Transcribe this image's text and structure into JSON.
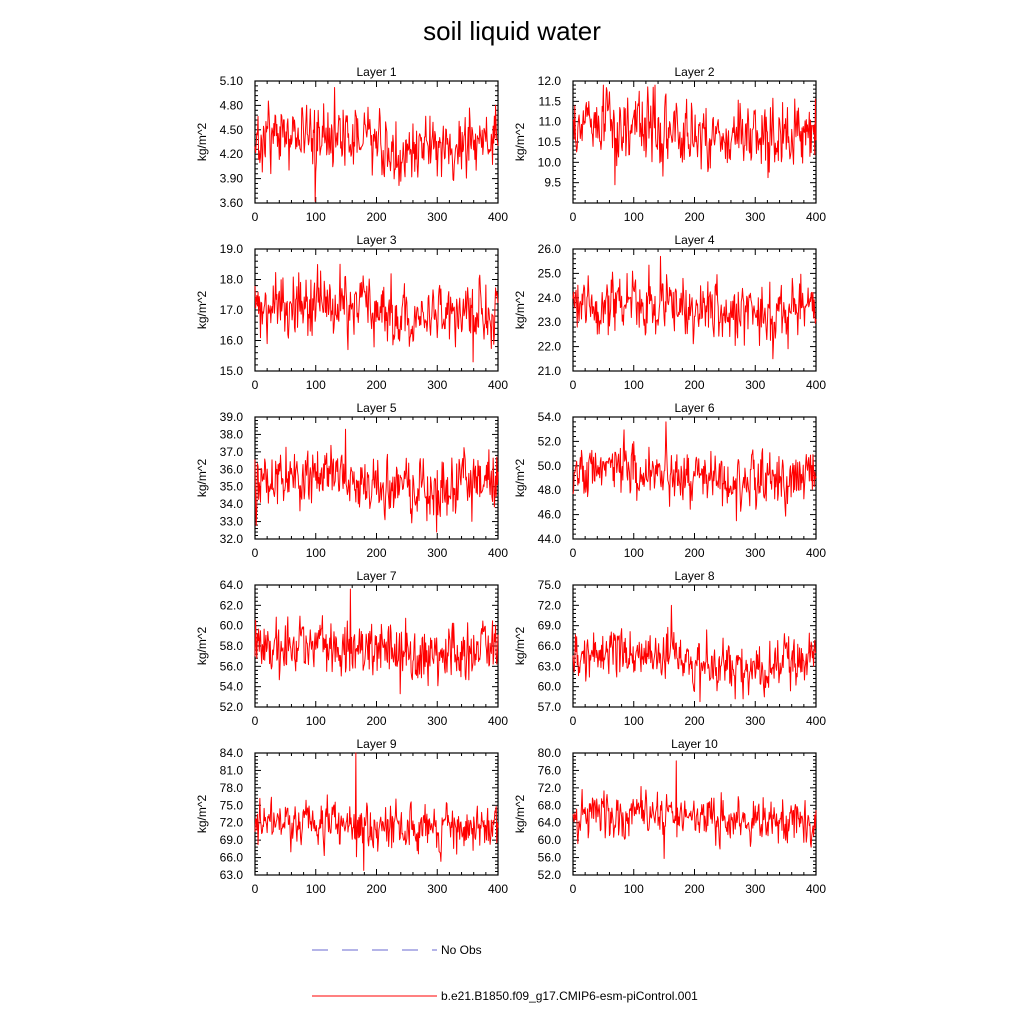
{
  "title": "soil liquid water",
  "colors": {
    "model_line": "#ff0000",
    "obs_line": "#6a6ad0",
    "axis": "#000000"
  },
  "legend": {
    "obs_label": "No Obs",
    "model_label": "b.e21.B1850.f09_g17.CMIP6-esm-piControl.001"
  },
  "chart_data": [
    {
      "type": "line",
      "title": "Layer 1",
      "ylabel": "kg/m^2",
      "xlabel": "",
      "xlim": [
        0,
        400
      ],
      "ylim": [
        3.6,
        5.1
      ],
      "xticks": [
        0,
        100,
        200,
        300,
        400
      ],
      "yticks": [
        3.6,
        3.9,
        4.2,
        4.5,
        4.8,
        5.1
      ],
      "ydecimals": 2,
      "series": [
        {
          "y_mean": 4.35,
          "y_amplitude": 0.24,
          "y_max": 5.02,
          "y_min": 3.62,
          "n_points": 400,
          "seed": 1
        }
      ]
    },
    {
      "type": "line",
      "title": "Layer 2",
      "ylabel": "kg/m^2",
      "xlabel": "",
      "xlim": [
        0,
        400
      ],
      "ylim": [
        9.0,
        12.0
      ],
      "xticks": [
        0,
        100,
        200,
        300,
        400
      ],
      "yticks": [
        9.5,
        10.0,
        10.5,
        11.0,
        11.5,
        12.0
      ],
      "ydecimals": 1,
      "series": [
        {
          "y_mean": 10.75,
          "y_amplitude": 0.5,
          "y_max": 11.9,
          "y_min": 9.45,
          "n_points": 400,
          "seed": 2
        }
      ]
    },
    {
      "type": "line",
      "title": "Layer 3",
      "ylabel": "kg/m^2",
      "xlabel": "",
      "xlim": [
        0,
        400
      ],
      "ylim": [
        15.0,
        19.0
      ],
      "xticks": [
        0,
        100,
        200,
        300,
        400
      ],
      "yticks": [
        15.0,
        16.0,
        17.0,
        18.0,
        19.0
      ],
      "ydecimals": 1,
      "series": [
        {
          "y_mean": 17.0,
          "y_amplitude": 0.6,
          "y_max": 18.5,
          "y_min": 15.3,
          "n_points": 400,
          "seed": 3
        }
      ]
    },
    {
      "type": "line",
      "title": "Layer 4",
      "ylabel": "kg/m^2",
      "xlabel": "",
      "xlim": [
        0,
        400
      ],
      "ylim": [
        21.0,
        26.0
      ],
      "xticks": [
        0,
        100,
        200,
        300,
        400
      ],
      "yticks": [
        21.0,
        22.0,
        23.0,
        24.0,
        25.0,
        26.0
      ],
      "ydecimals": 1,
      "series": [
        {
          "y_mean": 23.6,
          "y_amplitude": 0.75,
          "y_max": 25.7,
          "y_min": 21.5,
          "n_points": 400,
          "seed": 4
        }
      ]
    },
    {
      "type": "line",
      "title": "Layer 5",
      "ylabel": "kg/m^2",
      "xlabel": "",
      "xlim": [
        0,
        400
      ],
      "ylim": [
        32.0,
        39.0
      ],
      "xticks": [
        0,
        100,
        200,
        300,
        400
      ],
      "yticks": [
        32.0,
        33.0,
        34.0,
        35.0,
        36.0,
        37.0,
        38.0,
        39.0
      ],
      "ydecimals": 1,
      "series": [
        {
          "y_mean": 35.3,
          "y_amplitude": 1.0,
          "y_max": 38.3,
          "y_min": 32.4,
          "n_points": 400,
          "seed": 5
        }
      ]
    },
    {
      "type": "line",
      "title": "Layer 6",
      "ylabel": "kg/m^2",
      "xlabel": "",
      "xlim": [
        0,
        400
      ],
      "ylim": [
        44.0,
        54.0
      ],
      "xticks": [
        0,
        100,
        200,
        300,
        400
      ],
      "yticks": [
        44.0,
        46.0,
        48.0,
        50.0,
        52.0,
        54.0
      ],
      "ydecimals": 1,
      "series": [
        {
          "y_mean": 49.2,
          "y_amplitude": 1.3,
          "y_max": 53.6,
          "y_min": 45.5,
          "n_points": 400,
          "seed": 6
        }
      ]
    },
    {
      "type": "line",
      "title": "Layer 7",
      "ylabel": "kg/m^2",
      "xlabel": "",
      "xlim": [
        0,
        400
      ],
      "ylim": [
        52.0,
        64.0
      ],
      "xticks": [
        0,
        100,
        200,
        300,
        400
      ],
      "yticks": [
        52.0,
        54.0,
        56.0,
        58.0,
        60.0,
        62.0,
        64.0
      ],
      "ydecimals": 1,
      "series": [
        {
          "y_mean": 57.6,
          "y_amplitude": 1.6,
          "y_max": 63.6,
          "y_min": 53.3,
          "n_points": 400,
          "seed": 7
        }
      ]
    },
    {
      "type": "line",
      "title": "Layer 8",
      "ylabel": "kg/m^2",
      "xlabel": "",
      "xlim": [
        0,
        400
      ],
      "ylim": [
        57.0,
        75.0
      ],
      "xticks": [
        0,
        100,
        200,
        300,
        400
      ],
      "yticks": [
        57.0,
        60.0,
        63.0,
        66.0,
        69.0,
        72.0,
        75.0
      ],
      "ydecimals": 1,
      "series": [
        {
          "y_mean": 63.8,
          "y_amplitude": 2.1,
          "y_max": 72.0,
          "y_min": 57.8,
          "n_points": 400,
          "seed": 8
        }
      ]
    },
    {
      "type": "line",
      "title": "Layer 9",
      "ylabel": "kg/m^2",
      "xlabel": "",
      "xlim": [
        0,
        400
      ],
      "ylim": [
        63.0,
        84.0
      ],
      "xticks": [
        0,
        100,
        200,
        300,
        400
      ],
      "yticks": [
        63.0,
        66.0,
        69.0,
        72.0,
        75.0,
        78.0,
        81.0,
        84.0
      ],
      "ydecimals": 1,
      "series": [
        {
          "y_mean": 71.5,
          "y_amplitude": 2.4,
          "y_max": 84.0,
          "y_min": 63.8,
          "n_points": 400,
          "seed": 9
        }
      ]
    },
    {
      "type": "line",
      "title": "Layer 10",
      "ylabel": "kg/m^2",
      "xlabel": "",
      "xlim": [
        0,
        400
      ],
      "ylim": [
        52.0,
        80.0
      ],
      "xticks": [
        0,
        100,
        200,
        300,
        400
      ],
      "yticks": [
        52.0,
        56.0,
        60.0,
        64.0,
        68.0,
        72.0,
        76.0,
        80.0
      ],
      "ydecimals": 1,
      "series": [
        {
          "y_mean": 65.0,
          "y_amplitude": 3.0,
          "y_max": 78.2,
          "y_min": 55.8,
          "n_points": 400,
          "seed": 10
        }
      ]
    }
  ]
}
